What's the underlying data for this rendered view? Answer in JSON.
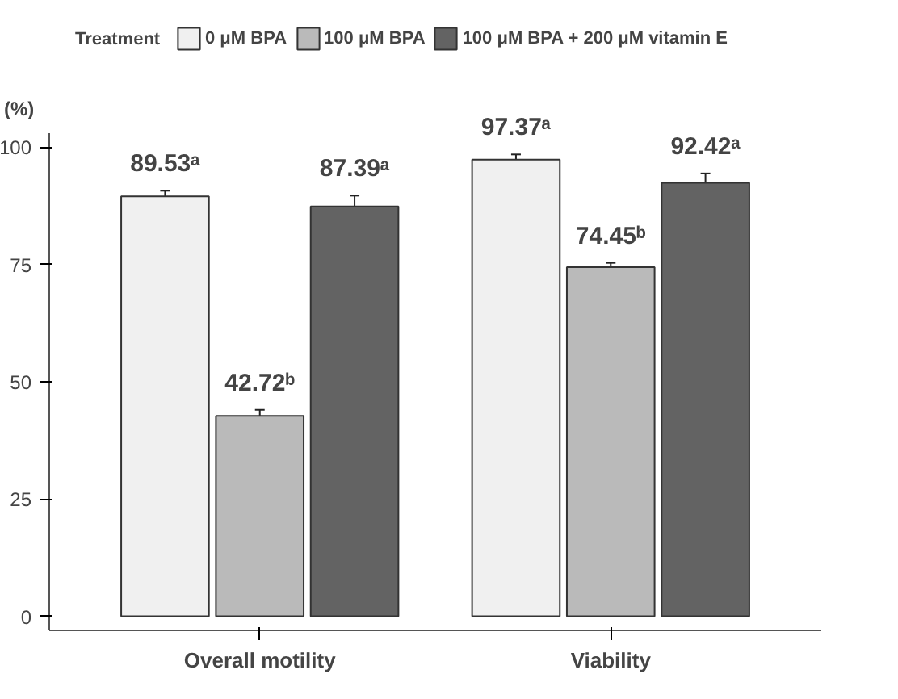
{
  "chart_data": {
    "type": "bar",
    "ylabel": "(%)",
    "legend_title": "Treatment",
    "legend": "top",
    "grid": false,
    "categories": [
      "Overall motility",
      "Viability"
    ],
    "ylim": [
      -3,
      103
    ],
    "yticks": [
      0,
      25,
      50,
      75,
      100
    ],
    "series": [
      {
        "name": "0 μM BPA",
        "color": "#f0f0f0",
        "values": [
          89.53,
          97.37
        ],
        "errors": [
          1.2,
          1.1
        ],
        "value_labels": [
          "89.53ᵃ",
          "97.37ᵃ"
        ]
      },
      {
        "name": "100 μM BPA",
        "color": "#bababa",
        "values": [
          42.72,
          74.45
        ],
        "errors": [
          1.3,
          0.9
        ],
        "value_labels": [
          "42.72ᵇ",
          "74.45ᵇ"
        ]
      },
      {
        "name": "100 μM BPA + 200 μM vitamin E",
        "color": "#636363",
        "values": [
          87.39,
          92.42
        ],
        "errors": [
          2.3,
          2.0
        ],
        "value_labels": [
          "87.39ᵃ",
          "92.42ᵃ"
        ]
      }
    ]
  }
}
